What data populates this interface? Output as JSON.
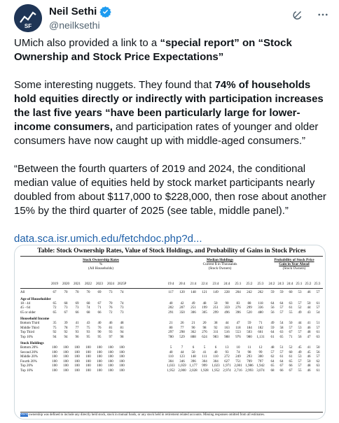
{
  "author": {
    "name": "Neil Sethi",
    "handle": "@neilksethi",
    "avatar_text": "SF"
  },
  "header_icons": [
    "grok-icon",
    "more-icon"
  ],
  "tweet": {
    "p1_a": "UMich also provided a link to a ",
    "p1_b": "“special report” on “Stock Ownership and Stock Price Expectations”",
    "p2_a": "Some interesting nuggets.  They found that ",
    "p2_b": "74% of households hold equities directly or indirectly with participation increases the last five years “have been particularly large for lower-income consumers,",
    "p2_c": " and participation rates of younger and older consumers have now caught up with middle-aged consumers.”",
    "p3": "“Between the fourth quarters of 2019 and 2024, the conditional median value of equities held by stock market participants nearly doubled from about $117,000 to $228,000, then rose about another 15% by the third quarter of 2025 (see table, middle panel).”",
    "link": "data.sca.isr.umich.edu/fetchdoc.php?d..."
  },
  "table": {
    "title": "Table: Stock Ownership Rates, Value of Stock Holdings, and Probability of Gains in Stock Prices",
    "panel1": {
      "title": "Stock Ownership Rates",
      "sub1": "%",
      "sub2": "(All Households)"
    },
    "panel2": {
      "title": "Median Holdings",
      "sub1": "Current $ in Thousands",
      "sub2": "(Stock Owners)"
    },
    "panel3": {
      "title": "Probability of Stock Price",
      "sub1": "Gain in Year Ahead",
      "sub2": "(Stock Owners)"
    },
    "years1": [
      "2019",
      "2020",
      "2021",
      "2022",
      "2023",
      "2024",
      "2025P"
    ],
    "years2": [
      "19:4",
      "20:4",
      "21:4",
      "22:4",
      "23:4",
      "24:4",
      "25:1",
      "25:2",
      "25:3"
    ],
    "years3": [
      "24:2",
      "24:3",
      "24:4",
      "25:1",
      "25:2",
      "25:3"
    ],
    "sections": [
      {
        "name": "",
        "rows": [
          {
            "label": "All",
            "p1": [
              "67",
              "70",
              "70",
              "70",
              "69",
              "73",
              "74"
            ],
            "p2": [
              "117",
              "120",
              "148",
              "121",
              "149",
              "228",
              "204",
              "242",
              "262"
            ],
            "p3": [
              "59",
              "59",
              "60",
              "53",
              "46",
              "57"
            ]
          }
        ]
      },
      {
        "name": "Age of Householder",
        "rows": [
          {
            "label": "18 - 44",
            "p1": [
              "65",
              "68",
              "69",
              "68",
              "67",
              "70",
              "74"
            ],
            "p2": [
              "40",
              "42",
              "49",
              "48",
              "50",
              "90",
              "83",
              "88",
              "118"
            ],
            "p3": [
              "64",
              "64",
              "63",
              "57",
              "50",
              "61"
            ]
          },
          {
            "label": "45 - 64",
            "p1": [
              "72",
              "73",
              "73",
              "74",
              "71",
              "76",
              "73"
            ],
            "p2": [
              "202",
              "207",
              "251",
              "199",
              "251",
              "359",
              "276",
              "299",
              "336"
            ],
            "p3": [
              "56",
              "57",
              "61",
              "52",
              "44",
              "57"
            ]
          },
          {
            "label": "65 or older",
            "p1": [
              "65",
              "67",
              "66",
              "68",
              "66",
              "72",
              "73"
            ],
            "p2": [
              "291",
              "350",
              "306",
              "305",
              "299",
              "496",
              "396",
              "520",
              "480"
            ],
            "p3": [
              "56",
              "57",
              "55",
              "49",
              "43",
              "54"
            ]
          }
        ]
      },
      {
        "name": "Household Income",
        "rows": [
          {
            "label": "Bottom Third",
            "p1": [
              "35",
              "39",
              "41",
              "43",
              "40",
              "46",
              "48"
            ],
            "p2": [
              "21",
              "26",
              "21",
              "20",
              "38",
              "44",
              "47",
              "59",
              "71"
            ],
            "p3": [
              "49",
              "54",
              "50",
              "44",
              "41",
              "51"
            ]
          },
          {
            "label": "Middle Third",
            "p1": [
              "75",
              "78",
              "77",
              "75",
              "76",
              "81",
              "81"
            ],
            "p2": [
              "80",
              "77",
              "90",
              "98",
              "92",
              "163",
              "118",
              "184",
              "182"
            ],
            "p3": [
              "59",
              "58",
              "57",
              "53",
              "46",
              "57"
            ]
          },
          {
            "label": "Top Third",
            "p1": [
              "92",
              "92",
              "93",
              "93",
              "90",
              "93",
              "94"
            ],
            "p2": [
              "297",
              "298",
              "362",
              "276",
              "311",
              "516",
              "553",
              "503",
              "661"
            ],
            "p3": [
              "64",
              "63",
              "67",
              "57",
              "48",
              "61"
            ]
          },
          {
            "label": "Top 10%",
            "p1": [
              "94",
              "94",
              "96",
              "95",
              "95",
              "97",
              "98"
            ],
            "p2": [
              "780",
              "529",
              "888",
              "624",
              "983",
              "988",
              "976",
              "980",
              "1,131"
            ],
            "p3": [
              "61",
              "65",
              "71",
              "56",
              "47",
              "63"
            ]
          }
        ]
      },
      {
        "name": "Stock Holdings",
        "rows": [
          {
            "label": "Bottom 20%",
            "p1": [
              "100",
              "100",
              "100",
              "100",
              "100",
              "100",
              "100"
            ],
            "p2": [
              "5",
              "7",
              "6",
              "5",
              "6",
              "13",
              "10",
              "11",
              "12"
            ],
            "p3": [
              "48",
              "51",
              "52",
              "45",
              "41",
              "50"
            ]
          },
          {
            "label": "Second 20%",
            "p1": [
              "100",
              "100",
              "100",
              "100",
              "100",
              "100",
              "100"
            ],
            "p2": [
              "40",
              "44",
              "50",
              "41",
              "40",
              "93",
              "74",
              "98",
              "99"
            ],
            "p3": [
              "57",
              "57",
              "60",
              "49",
              "45",
              "56"
            ]
          },
          {
            "label": "Middle 20%",
            "p1": [
              "100",
              "100",
              "100",
              "100",
              "100",
              "100",
              "100"
            ],
            "p2": [
              "110",
              "123",
              "148",
              "111",
              "110",
              "272",
              "249",
              "293",
              "300"
            ],
            "p3": [
              "62",
              "61",
              "61",
              "53",
              "46",
              "57"
            ]
          },
          {
            "label": "Fourth 20%",
            "p1": [
              "100",
              "100",
              "100",
              "100",
              "100",
              "100",
              "100"
            ],
            "p2": [
              "304",
              "346",
              "396",
              "304",
              "304",
              "627",
              "751",
              "709",
              "797"
            ],
            "p3": [
              "64",
              "64",
              "65",
              "57",
              "50",
              "62"
            ]
          },
          {
            "label": "Top 20%",
            "p1": [
              "100",
              "100",
              "100",
              "100",
              "100",
              "100",
              "100"
            ],
            "p2": [
              "1,033",
              "1,059",
              "1,177",
              "999",
              "1,023",
              "1,971",
              "2,001",
              "1,986",
              "1,942"
            ],
            "p3": [
              "65",
              "67",
              "66",
              "57",
              "48",
              "63"
            ]
          },
          {
            "label": "Top 10%",
            "p1": [
              "100",
              "100",
              "100",
              "100",
              "100",
              "100",
              "100"
            ],
            "p2": [
              "1,952",
              "2,000",
              "2,028",
              "1,928",
              "1,952",
              "2,974",
              "2,716",
              "2,993",
              "3,074"
            ],
            "p3": [
              "68",
              "66",
              "67",
              "55",
              "46",
              "61"
            ]
          }
        ]
      }
    ],
    "note_hl": "Stock",
    "note": " ownership was defined to include any directly held stock, stock in mutual funds, or any stock held in retirement related accounts. Missing responses omitted from all estimates."
  }
}
